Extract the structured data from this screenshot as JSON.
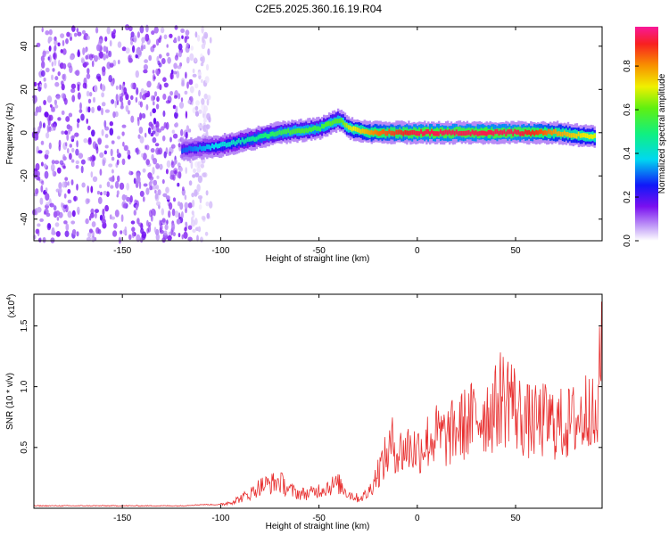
{
  "title": "C2E5.2025.360.16.19.R04",
  "chart_data": [
    {
      "type": "heatmap",
      "xlabel": "Height of straight line (km)",
      "ylabel": "Frequency (Hz)",
      "xlim": [
        -195,
        94
      ],
      "ylim": [
        -50,
        49
      ],
      "xticks": [
        -150,
        -100,
        -50,
        0,
        50
      ],
      "yticks": [
        -40,
        -20,
        0,
        20,
        40
      ],
      "colorbar": {
        "label": "Normalized spectral amplitude",
        "range": [
          0,
          0.98
        ],
        "ticks": [
          0.0,
          0.2,
          0.4,
          0.6,
          0.8
        ],
        "colormap": "white-purple-blue-cyan-green-yellow-orange-red-magenta"
      },
      "description_series": {
        "name": "",
        "x": [
          -120,
          -110,
          -100,
          -90,
          -80,
          -70,
          -60,
          -50,
          -45,
          -40,
          -35,
          -30,
          -25,
          -20,
          -10,
          0,
          10,
          20,
          30,
          40,
          50,
          60,
          70,
          80,
          90
        ],
        "frequency_center": [
          -8,
          -7,
          -6,
          -4,
          -2,
          0,
          1,
          2,
          4,
          6,
          2,
          1,
          0,
          0,
          0,
          0,
          0,
          0,
          0,
          0,
          0,
          0,
          0,
          -1,
          -2
        ],
        "peak_amplitude": [
          0.3,
          0.35,
          0.4,
          0.45,
          0.5,
          0.55,
          0.6,
          0.55,
          0.6,
          0.6,
          0.7,
          0.75,
          0.8,
          0.85,
          0.9,
          0.95,
          0.95,
          0.95,
          0.95,
          0.95,
          0.95,
          0.9,
          0.8,
          0.75,
          0.7
        ]
      },
      "noise_region_x": [
        -195,
        -105
      ]
    },
    {
      "type": "line",
      "xlabel": "Height of straight line (km)",
      "ylabel": "SNR (10 * v/v)",
      "yscale_label": "(x10",
      "yscale_exp": "4",
      "yscale_suffix": ")",
      "xlim": [
        -195,
        94
      ],
      "ylim": [
        0,
        1.76
      ],
      "xticks": [
        -150,
        -100,
        -50,
        0,
        50
      ],
      "yticks": [
        0.5,
        1.0,
        1.5
      ],
      "series": [
        {
          "name": "",
          "color": "#e83030",
          "x": [
            -195,
            -180,
            -160,
            -140,
            -120,
            -110,
            -100,
            -95,
            -90,
            -85,
            -80,
            -75,
            -70,
            -65,
            -60,
            -55,
            -50,
            -45,
            -40,
            -35,
            -30,
            -25,
            -20,
            -15,
            -12,
            -10,
            -5,
            0,
            5,
            10,
            15,
            20,
            25,
            30,
            35,
            40,
            43,
            45,
            47,
            50,
            55,
            60,
            65,
            70,
            75,
            80,
            85,
            88,
            90,
            92,
            94
          ],
          "y": [
            0.02,
            0.02,
            0.02,
            0.02,
            0.02,
            0.03,
            0.03,
            0.05,
            0.08,
            0.12,
            0.18,
            0.2,
            0.22,
            0.15,
            0.12,
            0.12,
            0.15,
            0.18,
            0.2,
            0.12,
            0.08,
            0.12,
            0.3,
            0.45,
            0.55,
            0.45,
            0.5,
            0.48,
            0.55,
            0.6,
            0.58,
            0.65,
            0.7,
            0.75,
            0.78,
            0.82,
            0.95,
            0.85,
            1.0,
            0.8,
            0.72,
            0.7,
            0.72,
            0.7,
            0.68,
            0.72,
            0.75,
            0.95,
            0.6,
            0.8,
            1.5
          ]
        }
      ]
    }
  ]
}
